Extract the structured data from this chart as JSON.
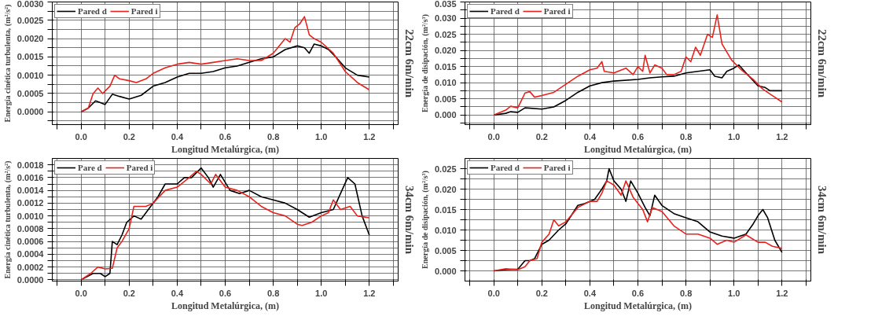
{
  "chart_data": [
    {
      "type": "line",
      "xlabel": "Longitud Metalúrgica, (m)",
      "ylabel": "Energía cinética turbulenta, (m²/s²)",
      "annotations": [
        "22cm 6m/min"
      ],
      "legend": "top left",
      "grid": true,
      "line_style": "solid",
      "xlim": [
        -0.12,
        1.32
      ],
      "ylim": [
        -0.00035,
        0.003
      ],
      "xticks": [
        {
          "value": -0.1,
          "label": null
        },
        {
          "value": 0,
          "label": "0.0"
        },
        {
          "value": 0.1,
          "label": null
        },
        {
          "value": 0.2,
          "label": "0.2"
        },
        {
          "value": 0.3,
          "label": null
        },
        {
          "value": 0.4,
          "label": "0.4"
        },
        {
          "value": 0.5,
          "label": null
        },
        {
          "value": 0.6,
          "label": "0.6"
        },
        {
          "value": 0.7,
          "label": null
        },
        {
          "value": 0.8,
          "label": "0.8"
        },
        {
          "value": 0.9,
          "label": null
        },
        {
          "value": 1.0,
          "label": "1.0"
        },
        {
          "value": 1.1,
          "label": null
        },
        {
          "value": 1.2,
          "label": "1.2"
        },
        {
          "value": 1.3,
          "label": null
        }
      ],
      "yticks": [
        {
          "value": -0.00025,
          "label": null
        },
        {
          "value": 0,
          "label": "0.0000"
        },
        {
          "value": 0.00025,
          "label": null
        },
        {
          "value": 0.0005,
          "label": "0.0005"
        },
        {
          "value": 0.00075,
          "label": null
        },
        {
          "value": 0.001,
          "label": "0.0010"
        },
        {
          "value": 0.00125,
          "label": null
        },
        {
          "value": 0.0015,
          "label": "0.0015"
        },
        {
          "value": 0.00175,
          "label": null
        },
        {
          "value": 0.002,
          "label": "0.0020"
        },
        {
          "value": 0.00225,
          "label": null
        },
        {
          "value": 0.0025,
          "label": "0.0025"
        },
        {
          "value": 0.00275,
          "label": null
        },
        {
          "value": 0.003,
          "label": "0.0030"
        }
      ],
      "series": [
        {
          "name": "Pared d",
          "color": "#000000",
          "x": [
            0,
            0.03,
            0.06,
            0.08,
            0.1,
            0.13,
            0.16,
            0.2,
            0.25,
            0.3,
            0.35,
            0.4,
            0.45,
            0.5,
            0.55,
            0.6,
            0.65,
            0.7,
            0.75,
            0.8,
            0.85,
            0.9,
            0.93,
            0.95,
            0.97,
            1.0,
            1.03,
            1.06,
            1.1,
            1.15,
            1.2
          ],
          "values": [
            0,
            0.0001,
            0.0003,
            0.00025,
            0.0002,
            0.00048,
            0.00042,
            0.00035,
            0.00045,
            0.0007,
            0.0008,
            0.00095,
            0.00105,
            0.00105,
            0.0011,
            0.0012,
            0.00125,
            0.00135,
            0.00145,
            0.0015,
            0.0017,
            0.0018,
            0.00175,
            0.0016,
            0.00185,
            0.0018,
            0.0017,
            0.0015,
            0.0012,
            0.001,
            0.00095
          ]
        },
        {
          "name": "Pared i",
          "color": "#e8221c",
          "x": [
            0,
            0.03,
            0.05,
            0.07,
            0.09,
            0.12,
            0.14,
            0.16,
            0.2,
            0.23,
            0.27,
            0.3,
            0.35,
            0.4,
            0.45,
            0.5,
            0.55,
            0.6,
            0.65,
            0.7,
            0.75,
            0.8,
            0.85,
            0.87,
            0.89,
            0.91,
            0.93,
            0.95,
            0.97,
            1.0,
            1.05,
            1.1,
            1.15,
            1.2
          ],
          "values": [
            0,
            0.0001,
            0.0005,
            0.00065,
            0.0005,
            0.0007,
            0.001,
            0.0009,
            0.00085,
            0.0008,
            0.0009,
            0.00105,
            0.0012,
            0.0013,
            0.00135,
            0.0013,
            0.00135,
            0.0014,
            0.00145,
            0.0014,
            0.0014,
            0.0016,
            0.002,
            0.0019,
            0.0023,
            0.0024,
            0.0026,
            0.0021,
            0.002,
            0.0019,
            0.0016,
            0.0011,
            0.0008,
            0.0006
          ]
        }
      ]
    },
    {
      "type": "line",
      "xlabel": "Longitud Metalúrgica, (m)",
      "ylabel": "Energía de disipación, (m²/s³)",
      "annotations": [
        "22cm 6m/min"
      ],
      "legend": "top left",
      "grid": true,
      "line_style": "solid",
      "xlim": [
        -0.12,
        1.32
      ],
      "ylim": [
        -0.003,
        0.035
      ],
      "xticks": [
        {
          "value": -0.1,
          "label": null
        },
        {
          "value": 0,
          "label": "0.0"
        },
        {
          "value": 0.1,
          "label": null
        },
        {
          "value": 0.2,
          "label": "0.2"
        },
        {
          "value": 0.3,
          "label": null
        },
        {
          "value": 0.4,
          "label": "0.4"
        },
        {
          "value": 0.5,
          "label": null
        },
        {
          "value": 0.6,
          "label": "0.6"
        },
        {
          "value": 0.7,
          "label": null
        },
        {
          "value": 0.8,
          "label": "0.8"
        },
        {
          "value": 0.9,
          "label": null
        },
        {
          "value": 1.0,
          "label": "1.0"
        },
        {
          "value": 1.1,
          "label": null
        },
        {
          "value": 1.2,
          "label": "1.2"
        },
        {
          "value": 1.3,
          "label": null
        }
      ],
      "yticks": [
        {
          "value": -0.0025,
          "label": null
        },
        {
          "value": 0,
          "label": "0.000"
        },
        {
          "value": 0.0025,
          "label": null
        },
        {
          "value": 0.005,
          "label": "0.005"
        },
        {
          "value": 0.0075,
          "label": null
        },
        {
          "value": 0.01,
          "label": "0.010"
        },
        {
          "value": 0.0125,
          "label": null
        },
        {
          "value": 0.015,
          "label": "0.015"
        },
        {
          "value": 0.0175,
          "label": null
        },
        {
          "value": 0.02,
          "label": "0.020"
        },
        {
          "value": 0.0225,
          "label": null
        },
        {
          "value": 0.025,
          "label": "0.025"
        },
        {
          "value": 0.0275,
          "label": null
        },
        {
          "value": 0.03,
          "label": "0.030"
        },
        {
          "value": 0.0325,
          "label": null
        },
        {
          "value": 0.035,
          "label": "0.035"
        }
      ],
      "series": [
        {
          "name": "Pared d",
          "color": "#000000",
          "x": [
            0,
            0.05,
            0.07,
            0.1,
            0.13,
            0.2,
            0.25,
            0.3,
            0.35,
            0.4,
            0.45,
            0.5,
            0.6,
            0.65,
            0.7,
            0.75,
            0.8,
            0.85,
            0.9,
            0.92,
            0.95,
            0.97,
            1.0,
            1.02,
            1.05,
            1.1,
            1.13,
            1.15,
            1.2
          ],
          "values": [
            0,
            0.0005,
            0.001,
            0.0008,
            0.0022,
            0.0018,
            0.0025,
            0.0045,
            0.007,
            0.009,
            0.01,
            0.0105,
            0.011,
            0.0115,
            0.0118,
            0.012,
            0.013,
            0.0135,
            0.014,
            0.012,
            0.0115,
            0.0135,
            0.0145,
            0.0155,
            0.013,
            0.009,
            0.0085,
            0.0075,
            0.0075
          ]
        },
        {
          "name": "Pared i",
          "color": "#e8221c",
          "x": [
            0,
            0.05,
            0.07,
            0.1,
            0.13,
            0.15,
            0.17,
            0.2,
            0.25,
            0.3,
            0.35,
            0.4,
            0.43,
            0.45,
            0.46,
            0.5,
            0.55,
            0.58,
            0.6,
            0.62,
            0.63,
            0.65,
            0.67,
            0.7,
            0.72,
            0.75,
            0.78,
            0.8,
            0.82,
            0.84,
            0.86,
            0.89,
            0.91,
            0.93,
            0.95,
            0.97,
            0.99,
            1.03,
            1.08,
            1.12,
            1.16,
            1.2
          ],
          "values": [
            0,
            0.0015,
            0.0027,
            0.0022,
            0.0068,
            0.0072,
            0.0055,
            0.006,
            0.007,
            0.0095,
            0.012,
            0.014,
            0.0145,
            0.0165,
            0.0135,
            0.013,
            0.0145,
            0.0125,
            0.015,
            0.0135,
            0.0185,
            0.013,
            0.0155,
            0.0145,
            0.0125,
            0.0125,
            0.0135,
            0.018,
            0.0165,
            0.021,
            0.0185,
            0.025,
            0.024,
            0.031,
            0.022,
            0.0195,
            0.017,
            0.014,
            0.011,
            0.008,
            0.006,
            0.004
          ]
        }
      ]
    },
    {
      "type": "line",
      "xlabel": "Longitud Metalúrgica, (m)",
      "ylabel": "Energía cinética turbulenta, (m²/s²)",
      "annotations": [
        "34cm 6m/min"
      ],
      "legend": "top left",
      "grid": true,
      "line_style": "solid",
      "xlim": [
        -0.12,
        1.32
      ],
      "ylim": [
        -2e-05,
        0.0019
      ],
      "xticks": [
        {
          "value": -0.1,
          "label": null
        },
        {
          "value": 0,
          "label": "0.0"
        },
        {
          "value": 0.1,
          "label": null
        },
        {
          "value": 0.2,
          "label": "0.2"
        },
        {
          "value": 0.3,
          "label": null
        },
        {
          "value": 0.4,
          "label": "0.4"
        },
        {
          "value": 0.5,
          "label": null
        },
        {
          "value": 0.6,
          "label": "0.6"
        },
        {
          "value": 0.7,
          "label": null
        },
        {
          "value": 0.8,
          "label": "0.8"
        },
        {
          "value": 0.9,
          "label": null
        },
        {
          "value": 1.0,
          "label": "1.0"
        },
        {
          "value": 1.1,
          "label": null
        },
        {
          "value": 1.2,
          "label": "1.2"
        },
        {
          "value": 1.3,
          "label": null
        }
      ],
      "yticks": [
        {
          "value": 0,
          "label": "0.0000"
        },
        {
          "value": 0.0001,
          "label": null
        },
        {
          "value": 0.0002,
          "label": "0.0002"
        },
        {
          "value": 0.0003,
          "label": null
        },
        {
          "value": 0.0004,
          "label": "0.0004"
        },
        {
          "value": 0.0005,
          "label": null
        },
        {
          "value": 0.0006,
          "label": "0.0006"
        },
        {
          "value": 0.0007,
          "label": null
        },
        {
          "value": 0.0008,
          "label": "0.0008"
        },
        {
          "value": 0.0009,
          "label": null
        },
        {
          "value": 0.001,
          "label": "0.0010"
        },
        {
          "value": 0.0011,
          "label": null
        },
        {
          "value": 0.0012,
          "label": "0.0012"
        },
        {
          "value": 0.0013,
          "label": null
        },
        {
          "value": 0.0014,
          "label": "0.0014"
        },
        {
          "value": 0.0015,
          "label": null
        },
        {
          "value": 0.0016,
          "label": "0.0016"
        },
        {
          "value": 0.0017,
          "label": null
        },
        {
          "value": 0.0018,
          "label": "0.0018"
        }
      ],
      "series": [
        {
          "name": "Pare d",
          "color": "#000000",
          "x": [
            0,
            0.05,
            0.08,
            0.1,
            0.12,
            0.13,
            0.15,
            0.17,
            0.19,
            0.22,
            0.25,
            0.28,
            0.32,
            0.35,
            0.4,
            0.43,
            0.46,
            0.5,
            0.53,
            0.55,
            0.58,
            0.62,
            0.66,
            0.7,
            0.75,
            0.8,
            0.85,
            0.9,
            0.95,
            1.0,
            1.05,
            1.08,
            1.11,
            1.14,
            1.17,
            1.2
          ],
          "values": [
            0,
            0.0001,
            0.0001,
            5e-05,
            0.0001,
            0.0006,
            0.00055,
            0.0007,
            0.0009,
            0.001,
            0.00095,
            0.0011,
            0.0013,
            0.0015,
            0.0015,
            0.0016,
            0.0016,
            0.00175,
            0.0016,
            0.00145,
            0.00165,
            0.0014,
            0.00135,
            0.0014,
            0.0013,
            0.00125,
            0.0012,
            0.0011,
            0.00098,
            0.00105,
            0.0011,
            0.00135,
            0.0016,
            0.0015,
            0.001,
            0.0007
          ]
        },
        {
          "name": "Pared i",
          "color": "#e8221c",
          "x": [
            0,
            0.04,
            0.07,
            0.1,
            0.13,
            0.15,
            0.17,
            0.2,
            0.22,
            0.27,
            0.3,
            0.35,
            0.4,
            0.45,
            0.48,
            0.5,
            0.54,
            0.56,
            0.6,
            0.65,
            0.7,
            0.75,
            0.8,
            0.85,
            0.9,
            0.92,
            0.96,
            1.0,
            1.03,
            1.05,
            1.08,
            1.12,
            1.15,
            1.2
          ],
          "values": [
            0,
            0.0001,
            0.0002,
            0.00017,
            0.00018,
            0.0005,
            0.0006,
            0.0008,
            0.00115,
            0.00115,
            0.0012,
            0.0014,
            0.00145,
            0.0016,
            0.0017,
            0.00165,
            0.0015,
            0.00165,
            0.00145,
            0.0014,
            0.0013,
            0.00115,
            0.00105,
            0.001,
            0.00087,
            0.00085,
            0.0009,
            0.001,
            0.00105,
            0.00125,
            0.0011,
            0.00115,
            0.001,
            0.00097
          ]
        }
      ]
    },
    {
      "type": "line",
      "xlabel": "Longitud Metalúrgica, (m)",
      "ylabel": "Energía de disipación, (m²/s³)",
      "annotations": [
        "34cm 6m/min"
      ],
      "legend": "top left",
      "grid": true,
      "line_style": "solid",
      "xlim": [
        -0.12,
        1.32
      ],
      "ylim": [
        -0.0025,
        0.0275
      ],
      "xticks": [
        {
          "value": -0.1,
          "label": null
        },
        {
          "value": 0,
          "label": "0.0"
        },
        {
          "value": 0.1,
          "label": null
        },
        {
          "value": 0.2,
          "label": "0.2"
        },
        {
          "value": 0.3,
          "label": null
        },
        {
          "value": 0.4,
          "label": "0.4"
        },
        {
          "value": 0.5,
          "label": null
        },
        {
          "value": 0.6,
          "label": "0.6"
        },
        {
          "value": 0.7,
          "label": null
        },
        {
          "value": 0.8,
          "label": "0.8"
        },
        {
          "value": 0.9,
          "label": null
        },
        {
          "value": 1.0,
          "label": "1.0"
        },
        {
          "value": 1.1,
          "label": null
        },
        {
          "value": 1.2,
          "label": "1.2"
        },
        {
          "value": 1.3,
          "label": null
        }
      ],
      "yticks": [
        {
          "value": 0,
          "label": "0.000"
        },
        {
          "value": 0.0025,
          "label": null
        },
        {
          "value": 0.005,
          "label": "0.005"
        },
        {
          "value": 0.0075,
          "label": null
        },
        {
          "value": 0.01,
          "label": "0.010"
        },
        {
          "value": 0.0125,
          "label": null
        },
        {
          "value": 0.015,
          "label": "0.015"
        },
        {
          "value": 0.0175,
          "label": null
        },
        {
          "value": 0.02,
          "label": "0.020"
        },
        {
          "value": 0.0225,
          "label": null
        },
        {
          "value": 0.025,
          "label": "0.025"
        }
      ],
      "series": [
        {
          "name": "Pared d",
          "color": "#000000",
          "x": [
            0,
            0.05,
            0.1,
            0.13,
            0.15,
            0.17,
            0.2,
            0.23,
            0.27,
            0.3,
            0.35,
            0.38,
            0.42,
            0.45,
            0.47,
            0.48,
            0.5,
            0.53,
            0.55,
            0.57,
            0.6,
            0.63,
            0.65,
            0.67,
            0.7,
            0.75,
            0.8,
            0.85,
            0.9,
            0.95,
            1.0,
            1.05,
            1.08,
            1.1,
            1.12,
            1.14,
            1.17,
            1.2
          ],
          "values": [
            0,
            0.0003,
            0.0004,
            0.0025,
            0.0025,
            0.003,
            0.0065,
            0.0075,
            0.01,
            0.0115,
            0.016,
            0.0165,
            0.0175,
            0.02,
            0.022,
            0.025,
            0.022,
            0.02,
            0.017,
            0.022,
            0.019,
            0.0155,
            0.0135,
            0.0185,
            0.016,
            0.014,
            0.013,
            0.012,
            0.0095,
            0.0085,
            0.008,
            0.009,
            0.0115,
            0.0135,
            0.015,
            0.013,
            0.0075,
            0.0045
          ]
        },
        {
          "name": "Pared i",
          "color": "#e8221c",
          "x": [
            0,
            0.05,
            0.1,
            0.13,
            0.15,
            0.18,
            0.2,
            0.23,
            0.25,
            0.27,
            0.3,
            0.35,
            0.4,
            0.43,
            0.45,
            0.47,
            0.5,
            0.53,
            0.55,
            0.58,
            0.62,
            0.64,
            0.66,
            0.7,
            0.75,
            0.8,
            0.85,
            0.9,
            0.93,
            0.97,
            1.0,
            1.05,
            1.1,
            1.13,
            1.16,
            1.2
          ],
          "values": [
            0,
            0.0005,
            0.0003,
            0.001,
            0.0025,
            0.003,
            0.007,
            0.009,
            0.0125,
            0.011,
            0.012,
            0.0155,
            0.017,
            0.017,
            0.019,
            0.022,
            0.021,
            0.0185,
            0.022,
            0.018,
            0.015,
            0.012,
            0.0155,
            0.0145,
            0.011,
            0.009,
            0.009,
            0.008,
            0.0065,
            0.0075,
            0.007,
            0.0088,
            0.007,
            0.007,
            0.006,
            0.0055
          ]
        }
      ]
    }
  ]
}
